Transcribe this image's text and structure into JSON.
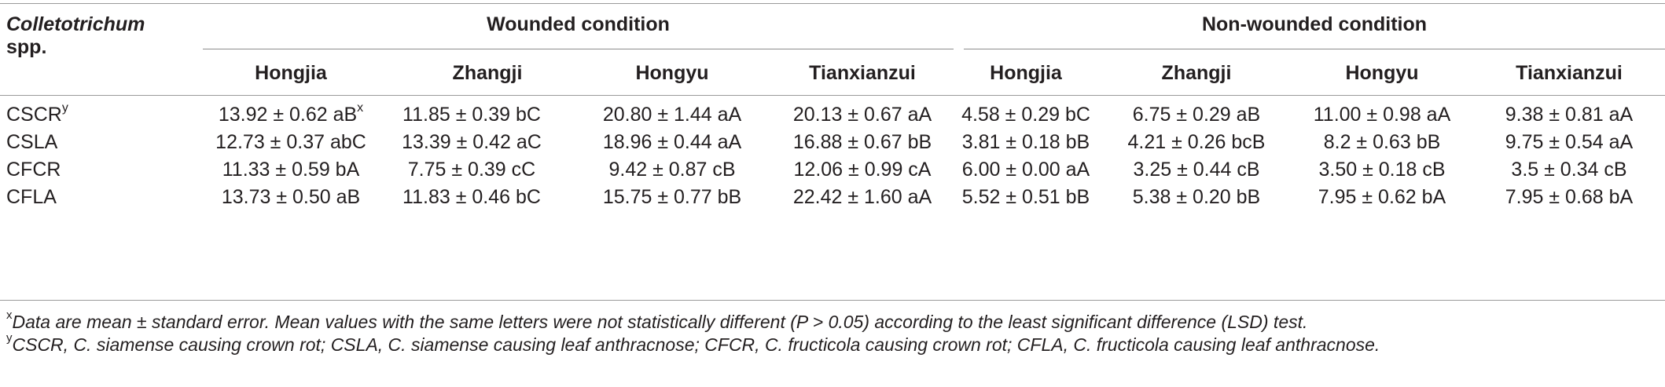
{
  "table": {
    "stub_header_line1": "Colletotrichum",
    "stub_header_line2": "spp.",
    "group_headers": [
      "Wounded condition",
      "Non-wounded condition"
    ],
    "cultivar_headers": [
      "Hongjia",
      "Zhangji",
      "Hongyu",
      "Tianxianzui",
      "Hongjia",
      "Zhangji",
      "Hongyu",
      "Tianxianzui"
    ],
    "rows": [
      {
        "label": "CSCR",
        "label_sup": "y",
        "cells": [
          "13.92 ± 0.62 aB",
          "11.85 ± 0.39 bC",
          "20.80 ± 1.44 aA",
          "20.13 ± 0.67 aA",
          "4.58 ± 0.29 bC",
          "6.75 ± 0.29 aB",
          "11.00 ± 0.98 aA",
          "9.38 ± 0.81 aA"
        ],
        "first_cell_sup": "x"
      },
      {
        "label": "CSLA",
        "label_sup": "",
        "cells": [
          "12.73 ± 0.37 abC",
          "13.39 ± 0.42 aC",
          "18.96 ± 0.44 aA",
          "16.88 ± 0.67 bB",
          "3.81 ± 0.18 bB",
          "4.21 ± 0.26 bcB",
          "8.2 ± 0.63 bB",
          "9.75 ± 0.54 aA"
        ],
        "first_cell_sup": ""
      },
      {
        "label": "CFCR",
        "label_sup": "",
        "cells": [
          "11.33 ± 0.59 bA",
          "7.75 ± 0.39 cC",
          "9.42 ± 0.87 cB",
          "12.06 ± 0.99 cA",
          "6.00 ± 0.00 aA",
          "3.25 ± 0.44 cB",
          "3.50 ± 0.18 cB",
          "3.5 ± 0.34 cB"
        ],
        "first_cell_sup": ""
      },
      {
        "label": "CFLA",
        "label_sup": "",
        "cells": [
          "13.73 ± 0.50 aB",
          "11.83 ± 0.46 bC",
          "15.75 ± 0.77 bB",
          "22.42 ± 1.60 aA",
          "5.52 ± 0.51 bB",
          "5.38 ± 0.20 bB",
          "7.95 ± 0.62 bA",
          "7.95 ± 0.68 bA"
        ],
        "first_cell_sup": ""
      }
    ]
  },
  "footnotes": [
    {
      "mark": "x",
      "text": "Data are mean ± standard error. Mean values with the same letters were not statistically different (P > 0.05) according to the least significant difference (LSD) test."
    },
    {
      "mark": "y",
      "text": "CSCR, C. siamense causing crown rot; CSLA, C. siamense causing leaf anthracnose; CFCR, C. fructicola causing crown rot; CFLA, C. fructicola causing leaf anthracnose."
    }
  ]
}
